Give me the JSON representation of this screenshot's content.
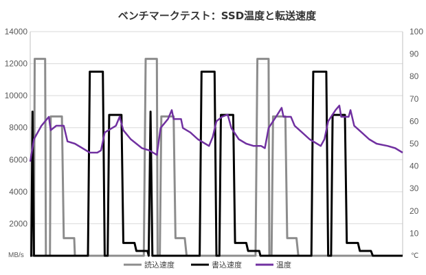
{
  "chart_data": {
    "type": "line",
    "title": "ベンチマークテスト：SSD温度と転送速度",
    "y_left": {
      "unit": "MB/s",
      "min": 0,
      "max": 14000,
      "ticks": [
        "0",
        "2000",
        "4000",
        "6000",
        "8000",
        "10000",
        "12000",
        "14000"
      ]
    },
    "y_right": {
      "unit": "℃",
      "min": 0,
      "max": 100,
      "ticks": [
        "0",
        "10",
        "20",
        "30",
        "40",
        "50",
        "60",
        "70",
        "80",
        "90",
        "100"
      ]
    },
    "x": {
      "min": 0,
      "max": 100,
      "labels": []
    },
    "grid": true,
    "legend_position": "bottom",
    "series": [
      {
        "name": "読込速度",
        "axis": "left",
        "color": "#8c8c8c",
        "points": [
          [
            0,
            0
          ],
          [
            1.0,
            0
          ],
          [
            1.2,
            12300
          ],
          [
            4.0,
            12300
          ],
          [
            4.2,
            0
          ],
          [
            5.3,
            0
          ],
          [
            5.5,
            8700
          ],
          [
            8.3,
            8700
          ],
          [
            8.5,
            8700
          ],
          [
            9.0,
            1100
          ],
          [
            11.8,
            1100
          ],
          [
            12.0,
            0
          ],
          [
            15.5,
            0
          ],
          [
            30.5,
            0
          ],
          [
            31.0,
            12300
          ],
          [
            34.0,
            12300
          ],
          [
            34.2,
            0
          ],
          [
            34.8,
            0
          ],
          [
            35.2,
            8700
          ],
          [
            38.5,
            8700
          ],
          [
            39.0,
            1100
          ],
          [
            41.5,
            1100
          ],
          [
            42.0,
            0
          ],
          [
            60.5,
            0
          ],
          [
            61.0,
            12300
          ],
          [
            64.0,
            12300
          ],
          [
            64.2,
            0
          ],
          [
            64.8,
            0
          ],
          [
            65.2,
            8700
          ],
          [
            68.5,
            8700
          ],
          [
            69.0,
            1100
          ],
          [
            71.5,
            1100
          ],
          [
            72.0,
            0
          ],
          [
            100,
            0
          ]
        ]
      },
      {
        "name": "書込速度",
        "axis": "left",
        "color": "#000000",
        "points": [
          [
            0,
            0
          ],
          [
            0.3,
            0
          ],
          [
            0.6,
            9000
          ],
          [
            1.0,
            0
          ],
          [
            15.5,
            0
          ],
          [
            16.0,
            11500
          ],
          [
            19.5,
            11500
          ],
          [
            20.0,
            0
          ],
          [
            20.8,
            0
          ],
          [
            21.2,
            8800
          ],
          [
            24.5,
            8800
          ],
          [
            25.0,
            800
          ],
          [
            28.0,
            800
          ],
          [
            28.5,
            300
          ],
          [
            31.5,
            300
          ],
          [
            31.8,
            0
          ],
          [
            32.3,
            9000
          ],
          [
            32.8,
            0
          ],
          [
            45.5,
            0
          ],
          [
            46.0,
            11500
          ],
          [
            49.5,
            11500
          ],
          [
            50.0,
            0
          ],
          [
            50.8,
            0
          ],
          [
            51.2,
            8800
          ],
          [
            54.5,
            8800
          ],
          [
            55.0,
            800
          ],
          [
            58.0,
            800
          ],
          [
            58.5,
            300
          ],
          [
            61.5,
            300
          ],
          [
            61.8,
            0
          ],
          [
            75.5,
            0
          ],
          [
            76.0,
            11500
          ],
          [
            79.5,
            11500
          ],
          [
            80.0,
            0
          ],
          [
            80.8,
            0
          ],
          [
            81.2,
            8800
          ],
          [
            84.5,
            8800
          ],
          [
            85.0,
            800
          ],
          [
            88.0,
            800
          ],
          [
            88.5,
            300
          ],
          [
            91.5,
            300
          ],
          [
            92.0,
            0
          ],
          [
            100,
            0
          ]
        ]
      },
      {
        "name": "温度",
        "axis": "right",
        "color": "#7030a0",
        "points": [
          [
            0,
            42
          ],
          [
            1.0,
            52
          ],
          [
            3.0,
            58
          ],
          [
            5.0,
            62
          ],
          [
            5.5,
            56
          ],
          [
            7.0,
            58
          ],
          [
            9.0,
            58
          ],
          [
            10.0,
            51
          ],
          [
            12.0,
            50
          ],
          [
            14.0,
            48
          ],
          [
            16.0,
            46
          ],
          [
            18.0,
            46
          ],
          [
            19.0,
            47
          ],
          [
            20.0,
            55
          ],
          [
            21.0,
            56
          ],
          [
            23.0,
            58
          ],
          [
            24.0,
            62
          ],
          [
            25.0,
            56
          ],
          [
            27.0,
            52
          ],
          [
            30.0,
            48
          ],
          [
            32.0,
            47
          ],
          [
            34.0,
            45
          ],
          [
            35.0,
            57
          ],
          [
            37.0,
            61
          ],
          [
            38.0,
            65
          ],
          [
            38.5,
            61
          ],
          [
            40.5,
            61
          ],
          [
            41.0,
            57
          ],
          [
            43.0,
            55
          ],
          [
            45.0,
            52
          ],
          [
            47.0,
            50
          ],
          [
            48.0,
            49
          ],
          [
            49.0,
            53
          ],
          [
            50.0,
            60
          ],
          [
            51.5,
            62
          ],
          [
            53.0,
            63
          ],
          [
            54.0,
            57
          ],
          [
            56.0,
            52
          ],
          [
            58.0,
            50
          ],
          [
            60.0,
            49
          ],
          [
            62.0,
            49
          ],
          [
            63.0,
            48
          ],
          [
            64.0,
            57
          ],
          [
            66.0,
            62
          ],
          [
            67.5,
            66
          ],
          [
            68.0,
            62
          ],
          [
            70.0,
            62
          ],
          [
            71.0,
            58
          ],
          [
            73.0,
            55
          ],
          [
            75.0,
            52
          ],
          [
            77.0,
            50
          ],
          [
            78.0,
            49
          ],
          [
            79.0,
            52
          ],
          [
            80.0,
            60
          ],
          [
            82.0,
            65
          ],
          [
            83.0,
            67
          ],
          [
            83.5,
            62
          ],
          [
            85.5,
            62
          ],
          [
            86.0,
            65
          ],
          [
            87.0,
            58
          ],
          [
            89.0,
            55
          ],
          [
            91.0,
            52
          ],
          [
            93.0,
            50
          ],
          [
            96.0,
            49
          ],
          [
            98.0,
            48
          ],
          [
            100,
            46
          ]
        ]
      }
    ]
  }
}
